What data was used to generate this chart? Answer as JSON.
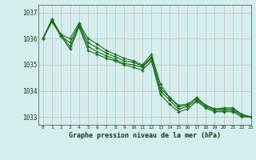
{
  "title": "Graphe pression niveau de la mer (hPa)",
  "background_color": "#d4eeee",
  "grid_color_major": "#c0dada",
  "grid_color_minor": "#dceaea",
  "line_color": "#1a6b1a",
  "xlim": [
    -0.5,
    23
  ],
  "ylim": [
    1032.7,
    1037.3
  ],
  "yticks": [
    1033,
    1034,
    1035,
    1036,
    1037
  ],
  "xticks": [
    0,
    1,
    2,
    3,
    4,
    5,
    6,
    7,
    8,
    9,
    10,
    11,
    12,
    13,
    14,
    15,
    16,
    17,
    18,
    19,
    20,
    21,
    22,
    23
  ],
  "series": [
    [
      1036.0,
      1036.75,
      1036.1,
      1035.85,
      1036.55,
      1035.85,
      1035.65,
      1035.45,
      1035.3,
      1035.15,
      1035.1,
      1034.95,
      1035.3,
      1034.1,
      1033.75,
      1033.4,
      1033.45,
      1033.75,
      1033.45,
      1033.3,
      1033.3,
      1033.3,
      1033.1,
      1033.0
    ],
    [
      1036.0,
      1036.75,
      1036.15,
      1036.0,
      1036.6,
      1036.0,
      1035.8,
      1035.55,
      1035.4,
      1035.25,
      1035.15,
      1035.0,
      1035.4,
      1034.25,
      1033.75,
      1033.45,
      1033.5,
      1033.7,
      1033.45,
      1033.3,
      1033.35,
      1033.35,
      1033.1,
      1033.0
    ],
    [
      1036.0,
      1036.7,
      1036.15,
      1035.7,
      1036.5,
      1035.7,
      1035.5,
      1035.35,
      1035.2,
      1035.05,
      1035.0,
      1034.9,
      1035.25,
      1034.0,
      1033.65,
      1033.3,
      1033.4,
      1033.65,
      1033.4,
      1033.25,
      1033.25,
      1033.25,
      1033.05,
      1033.0
    ],
    [
      1036.0,
      1036.65,
      1036.1,
      1035.6,
      1036.45,
      1035.55,
      1035.4,
      1035.25,
      1035.15,
      1035.0,
      1034.9,
      1034.8,
      1035.15,
      1033.85,
      1033.5,
      1033.2,
      1033.3,
      1033.6,
      1033.35,
      1033.2,
      1033.2,
      1033.2,
      1033.0,
      1033.0
    ]
  ]
}
